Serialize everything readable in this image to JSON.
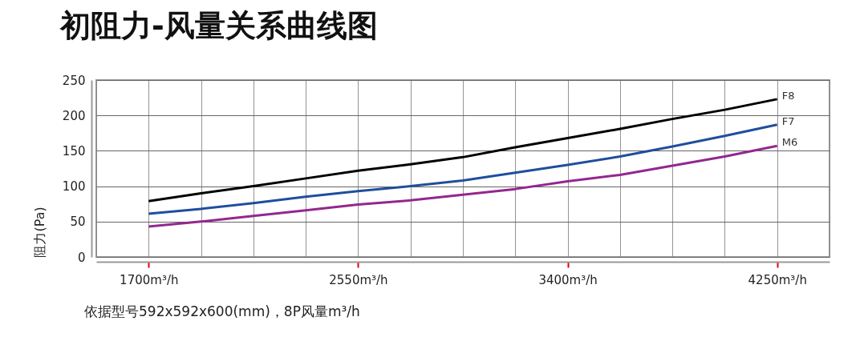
{
  "chart_data": {
    "type": "line",
    "title": "初阻力-风量关系曲线图",
    "ylabel": "阻力(Pa)",
    "annotations": [
      "依据型号592x592x600(mm)，8P风量m³/h"
    ],
    "x": [
      1700,
      1912.5,
      2125,
      2337.5,
      2550,
      2762.5,
      2975,
      3187.5,
      3400,
      3612.5,
      3825,
      4037.5,
      4250
    ],
    "series": [
      {
        "name": "F8",
        "color": "#000000",
        "values": [
          79,
          90,
          100,
          111,
          122,
          131,
          141,
          155,
          168,
          181,
          195,
          208,
          223
        ]
      },
      {
        "name": "F7",
        "color": "#1f4e9c",
        "values": [
          61,
          68,
          76,
          85,
          93,
          100,
          108,
          119,
          130,
          142,
          156,
          171,
          187
        ]
      },
      {
        "name": "M6",
        "color": "#93278f",
        "values": [
          43,
          50,
          58,
          66,
          74,
          80,
          88,
          96,
          107,
          116,
          129,
          142,
          157
        ]
      }
    ],
    "xlim": [
      1487.5,
      4462.5
    ],
    "xticks": [
      {
        "value": 1487.5,
        "label": null
      },
      {
        "value": 1700,
        "label": "1700m³/h"
      },
      {
        "value": 1912.5,
        "label": null
      },
      {
        "value": 2125,
        "label": null
      },
      {
        "value": 2337.5,
        "label": null
      },
      {
        "value": 2550,
        "label": "2550m³/h"
      },
      {
        "value": 2762.5,
        "label": null
      },
      {
        "value": 2975,
        "label": null
      },
      {
        "value": 3187.5,
        "label": null
      },
      {
        "value": 3400,
        "label": "3400m³/h"
      },
      {
        "value": 3612.5,
        "label": null
      },
      {
        "value": 3825,
        "label": null
      },
      {
        "value": 4037.5,
        "label": null
      },
      {
        "value": 4250,
        "label": "4250m³/h"
      },
      {
        "value": 4462.5,
        "label": null
      }
    ],
    "ylim": [
      0,
      250
    ],
    "yticks": [
      0,
      50,
      100,
      150,
      200,
      250
    ],
    "grid": true,
    "legend": false,
    "line_style": "solid",
    "marker": "none"
  }
}
